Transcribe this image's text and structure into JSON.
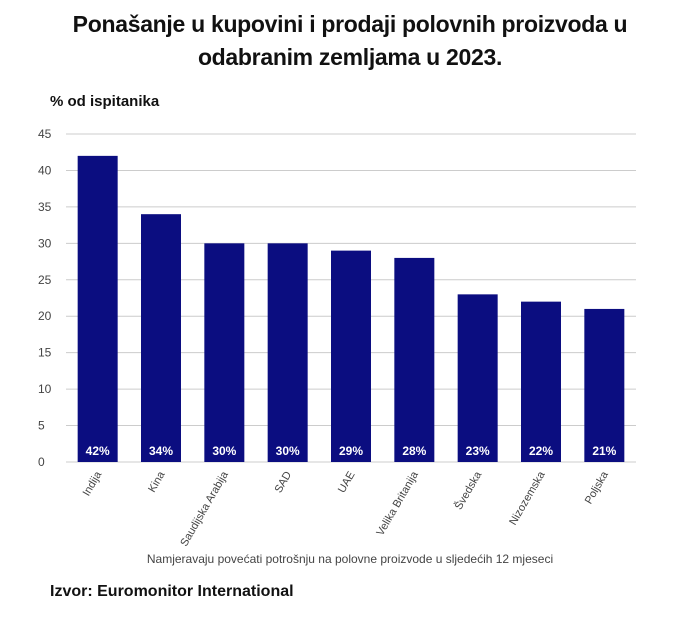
{
  "title_line1": "Ponašanje u kupovini i prodaji polovnih proizvoda u",
  "title_line2": "odabranim zemljama u 2023.",
  "source": "Izvor: Euromonitor International",
  "colors": {
    "bar": "#0b0d80",
    "grid": "#cccccc",
    "label": "#ffffff"
  },
  "chart_data": {
    "type": "bar",
    "ylabel": "% od ispitanika",
    "xlabel": "Namjeravaju povećati potrošnju na polovne proizvode u sljedećih 12 mjeseci",
    "categories": [
      "Indija",
      "Kina",
      "Saudijska Arabija",
      "SAD",
      "UAE",
      "Velika Britanija",
      "Švedska",
      "Nizozemska",
      "Poljska"
    ],
    "values": [
      42,
      34,
      30,
      30,
      29,
      28,
      23,
      22,
      21
    ],
    "value_labels": [
      "42%",
      "34%",
      "30%",
      "30%",
      "29%",
      "28%",
      "23%",
      "22%",
      "21%"
    ],
    "ylim": [
      0,
      45
    ],
    "yticks": [
      "0",
      "5",
      "10",
      "15",
      "20",
      "25",
      "30",
      "35",
      "40",
      "45"
    ],
    "grid": true
  }
}
